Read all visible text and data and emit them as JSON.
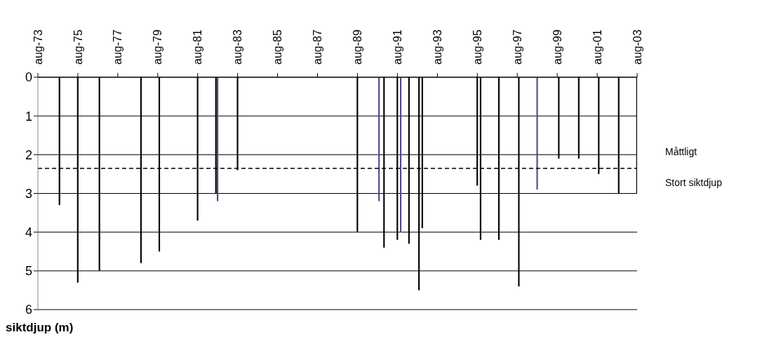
{
  "chart_data": {
    "type": "bar",
    "ylabel": "siktdjup (m)",
    "x": [
      "1974-09",
      "1975-08",
      "1976-09",
      "1978-10",
      "1979-09",
      "1981-08",
      "1982-07",
      "1982-08",
      "1983-08",
      "1989-08",
      "1990-09",
      "1990-12",
      "1991-08",
      "1991-10",
      "1992-03",
      "1992-09",
      "1992-11",
      "1995-08",
      "1995-10",
      "1996-09",
      "1997-09",
      "1998-08",
      "1999-09",
      "2000-09",
      "2001-09",
      "2002-09",
      "2003-08"
    ],
    "values": [
      3.3,
      5.3,
      5.0,
      4.8,
      4.5,
      3.7,
      3.0,
      3.2,
      2.4,
      4.0,
      3.2,
      4.4,
      4.2,
      4.0,
      4.3,
      5.5,
      3.9,
      2.8,
      4.2,
      4.2,
      5.4,
      2.9,
      2.1,
      2.1,
      2.5,
      3.0,
      3.0
    ],
    "colors": [
      "#000000",
      "#000000",
      "#000000",
      "#000000",
      "#000000",
      "#000000",
      "#000000",
      "#4b4b8c",
      "#000000",
      "#000000",
      "#4b4b8c",
      "#000000",
      "#000000",
      "#4b4b8c",
      "#000000",
      "#000000",
      "#000000",
      "#000000",
      "#000000",
      "#000000",
      "#000000",
      "#4b4b8c",
      "#000000",
      "#000000",
      "#000000",
      "#000000",
      "#000000"
    ],
    "xlim": [
      "1973-08",
      "2003-08"
    ],
    "xticks": [
      {
        "value": "1973-08",
        "label": "aug-73"
      },
      {
        "value": "1975-08",
        "label": "aug-75"
      },
      {
        "value": "1977-08",
        "label": "aug-77"
      },
      {
        "value": "1979-08",
        "label": "aug-79"
      },
      {
        "value": "1981-08",
        "label": "aug-81"
      },
      {
        "value": "1983-08",
        "label": "aug-83"
      },
      {
        "value": "1985-08",
        "label": "aug-85"
      },
      {
        "value": "1987-08",
        "label": "aug-87"
      },
      {
        "value": "1989-08",
        "label": "aug-89"
      },
      {
        "value": "1991-08",
        "label": "aug-91"
      },
      {
        "value": "1993-08",
        "label": "aug-93"
      },
      {
        "value": "1995-08",
        "label": "aug-95"
      },
      {
        "value": "1997-08",
        "label": "aug-97"
      },
      {
        "value": "1999-08",
        "label": "aug-99"
      },
      {
        "value": "2001-08",
        "label": "aug-01"
      },
      {
        "value": "2003-08",
        "label": "aug-03"
      }
    ],
    "ylim": [
      6,
      0
    ],
    "yticks": [
      0,
      1,
      2,
      3,
      4,
      5,
      6
    ],
    "grid": "y",
    "ref_lines": [
      {
        "axis": "y",
        "value": 2.35,
        "color": "#000000",
        "line_style": "dashed"
      }
    ],
    "annotations": [
      "Måttligt",
      "Stort siktdjup"
    ]
  }
}
